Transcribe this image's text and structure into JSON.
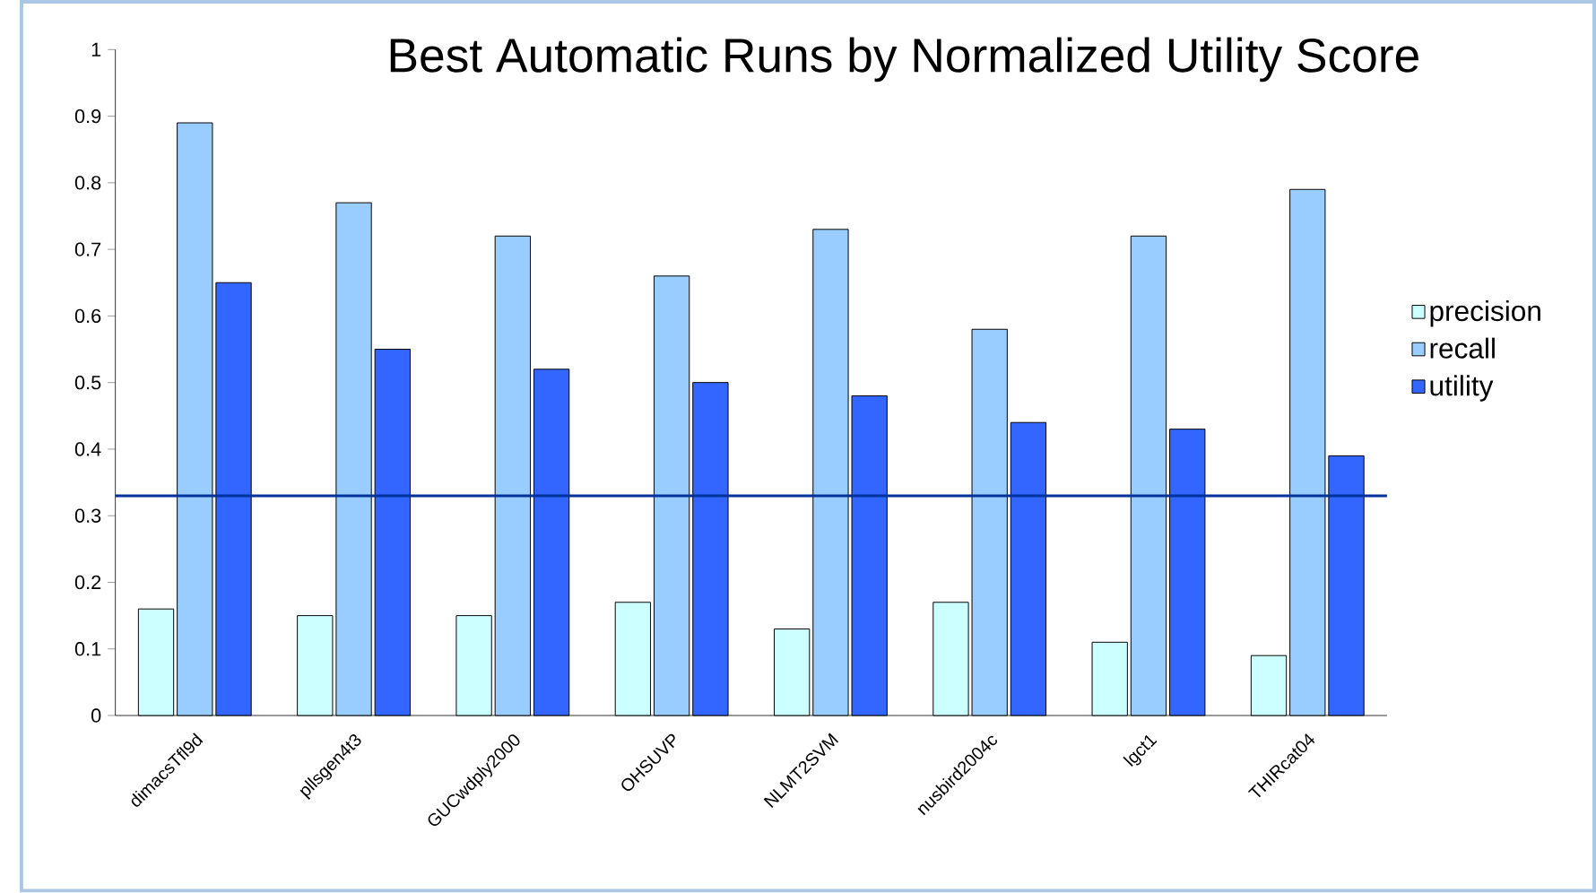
{
  "chart_data": {
    "type": "bar",
    "title": "Best Automatic Runs by Normalized Utility Score",
    "categories": [
      "dimacsTfl9d",
      "pllsgen4t3",
      "GUCwdply2000",
      "OHSUVP",
      "NLMT2SVM",
      "nusbird2004c",
      "lgct1",
      "THIRcat04"
    ],
    "series": [
      {
        "name": "precision",
        "color": "#ccffff",
        "values": [
          0.16,
          0.15,
          0.15,
          0.17,
          0.13,
          0.17,
          0.11,
          0.09
        ]
      },
      {
        "name": "recall",
        "color": "#99ccff",
        "values": [
          0.89,
          0.77,
          0.72,
          0.66,
          0.73,
          0.58,
          0.72,
          0.79
        ]
      },
      {
        "name": "utility",
        "color": "#3366ff",
        "values": [
          0.65,
          0.55,
          0.52,
          0.5,
          0.48,
          0.44,
          0.43,
          0.39
        ]
      }
    ],
    "ylim": [
      0,
      1
    ],
    "yticks": [
      0,
      0.1,
      0.2,
      0.3,
      0.4,
      0.5,
      0.6,
      0.7,
      0.8,
      0.9,
      1
    ],
    "ref_lines": [
      {
        "axis": "y",
        "value": 0.33,
        "color": "#003399"
      }
    ],
    "grid": false,
    "legend": "right"
  }
}
